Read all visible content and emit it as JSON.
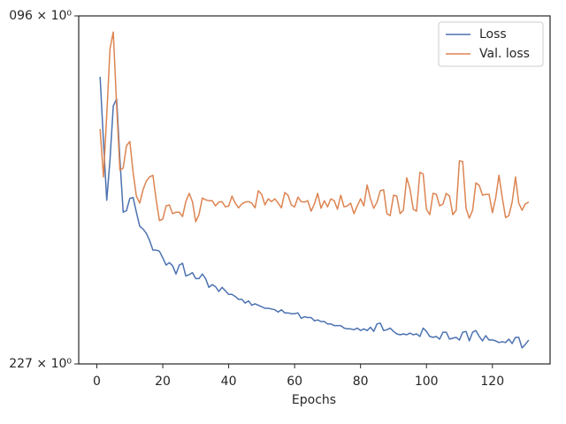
{
  "chart_data": {
    "type": "line",
    "xlabel": "Epochs",
    "x": [
      1,
      2,
      3,
      4,
      5,
      6,
      7,
      8,
      9,
      10,
      11,
      12,
      13,
      14,
      15,
      16,
      17,
      18,
      19,
      20,
      21,
      22,
      23,
      24,
      25,
      26,
      27,
      28,
      29,
      30,
      31,
      32,
      33,
      34,
      35,
      36,
      37,
      38,
      39,
      40,
      41,
      42,
      43,
      44,
      45,
      46,
      47,
      48,
      49,
      50,
      51,
      52,
      53,
      54,
      55,
      56,
      57,
      58,
      59,
      60,
      61,
      62,
      63,
      64,
      65,
      66,
      67,
      68,
      69,
      70,
      71,
      72,
      73,
      74,
      75,
      76,
      77,
      78,
      79,
      80,
      81,
      82,
      83,
      84,
      85,
      86,
      87,
      88,
      89,
      90,
      91,
      92,
      93,
      94,
      95,
      96,
      97,
      98,
      99,
      100,
      101,
      102,
      103,
      104,
      105,
      106,
      107,
      108,
      109,
      110,
      111,
      112,
      113,
      114,
      115,
      116,
      117,
      118,
      119,
      120,
      121,
      122,
      123,
      124,
      125,
      126,
      127,
      128,
      129,
      130,
      131
    ],
    "series": [
      {
        "name": "Loss",
        "color": "#4c72b0",
        "values": [
          0.832,
          0.621,
          0.476,
          0.572,
          0.729,
          0.753,
          0.572,
          0.451,
          0.454,
          0.48,
          0.482,
          0.451,
          0.423,
          0.418,
          0.41,
          0.397,
          0.38,
          0.38,
          0.378,
          0.367,
          0.355,
          0.359,
          0.354,
          0.341,
          0.355,
          0.358,
          0.338,
          0.34,
          0.343,
          0.334,
          0.334,
          0.341,
          0.334,
          0.321,
          0.325,
          0.322,
          0.315,
          0.321,
          0.316,
          0.311,
          0.311,
          0.308,
          0.304,
          0.304,
          0.299,
          0.302,
          0.296,
          0.298,
          0.296,
          0.294,
          0.292,
          0.292,
          0.291,
          0.29,
          0.287,
          0.29,
          0.286,
          0.286,
          0.285,
          0.285,
          0.286,
          0.279,
          0.281,
          0.28,
          0.28,
          0.276,
          0.277,
          0.275,
          0.275,
          0.272,
          0.272,
          0.27,
          0.27,
          0.27,
          0.267,
          0.266,
          0.266,
          0.265,
          0.267,
          0.264,
          0.266,
          0.264,
          0.268,
          0.263,
          0.272,
          0.273,
          0.264,
          0.265,
          0.267,
          0.263,
          0.26,
          0.259,
          0.26,
          0.259,
          0.261,
          0.259,
          0.26,
          0.257,
          0.267,
          0.263,
          0.257,
          0.256,
          0.257,
          0.254,
          0.262,
          0.262,
          0.254,
          0.255,
          0.256,
          0.253,
          0.262,
          0.263,
          0.252,
          0.262,
          0.264,
          0.257,
          0.252,
          0.258,
          0.253,
          0.253,
          0.252,
          0.25,
          0.251,
          0.25,
          0.254,
          0.249,
          0.256,
          0.256,
          0.244,
          0.248,
          0.253
        ]
      },
      {
        "name": "Val. loss",
        "color": "#dd8452",
        "values": [
          0.657,
          0.529,
          0.7,
          0.945,
          1.019,
          0.729,
          0.545,
          0.551,
          0.609,
          0.621,
          0.54,
          0.485,
          0.47,
          0.499,
          0.519,
          0.529,
          0.533,
          0.477,
          0.434,
          0.437,
          0.464,
          0.466,
          0.448,
          0.451,
          0.451,
          0.442,
          0.473,
          0.491,
          0.473,
          0.432,
          0.446,
          0.481,
          0.477,
          0.475,
          0.475,
          0.464,
          0.472,
          0.473,
          0.462,
          0.464,
          0.485,
          0.47,
          0.46,
          0.468,
          0.472,
          0.473,
          0.47,
          0.46,
          0.497,
          0.489,
          0.466,
          0.479,
          0.473,
          0.479,
          0.47,
          0.46,
          0.493,
          0.487,
          0.466,
          0.462,
          0.483,
          0.473,
          0.472,
          0.475,
          0.453,
          0.468,
          0.491,
          0.459,
          0.475,
          0.462,
          0.479,
          0.475,
          0.457,
          0.487,
          0.462,
          0.464,
          0.47,
          0.448,
          0.464,
          0.479,
          0.464,
          0.51,
          0.479,
          0.459,
          0.472,
          0.497,
          0.499,
          0.448,
          0.444,
          0.487,
          0.485,
          0.448,
          0.455,
          0.527,
          0.501,
          0.457,
          0.453,
          0.54,
          0.536,
          0.457,
          0.446,
          0.491,
          0.489,
          0.464,
          0.468,
          0.491,
          0.485,
          0.446,
          0.455,
          0.569,
          0.567,
          0.459,
          0.439,
          0.455,
          0.515,
          0.509,
          0.487,
          0.489,
          0.489,
          0.45,
          0.481,
          0.533,
          0.481,
          0.44,
          0.444,
          0.472,
          0.529,
          0.47,
          0.455,
          0.468,
          0.472
        ]
      }
    ],
    "xlim": [
      -5.5,
      137.5
    ],
    "xticks": [
      0,
      20,
      40,
      60,
      80,
      100,
      120
    ],
    "ylim": [
      0.227,
      1.096
    ],
    "yticks": [
      {
        "value": 0.227,
        "label": "227 × 10⁰"
      },
      {
        "value": 1.096,
        "label": "096 × 10⁰"
      }
    ],
    "ylog": true,
    "legend": "upper right"
  }
}
